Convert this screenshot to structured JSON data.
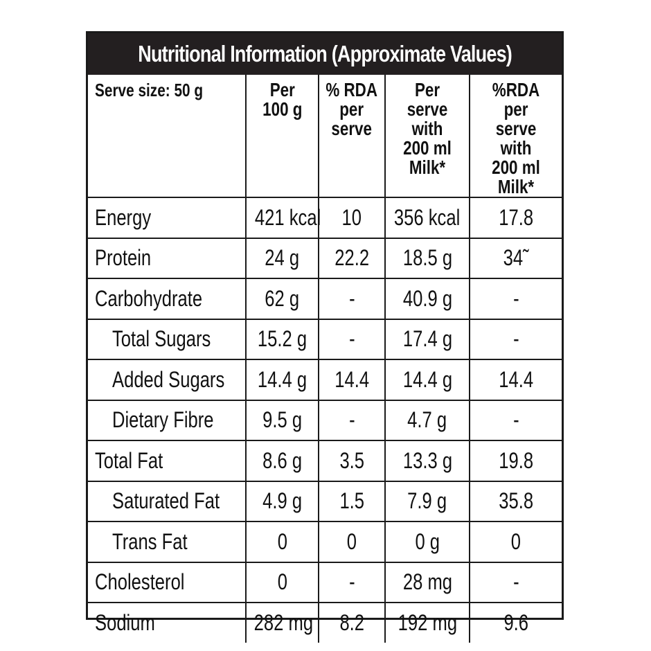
{
  "title": "Nutritional Information (Approximate Values)",
  "headers": {
    "serve_size": "Serve size: 50 g",
    "per_100g": "Per\n100 g",
    "rda_per_serve": "% RDA\nper\nserve",
    "per_serve_milk": "Per serve\nwith\n200 ml\nMilk*",
    "rda_per_serve_milk": "%RDA per\nserve with\n200 ml\nMilk*"
  },
  "rows": [
    {
      "nutrient": "Energy",
      "indent": false,
      "per100g": "421 kcal",
      "rda": "10",
      "perServeMilk": "356 kcal",
      "rdaMilk": "17.8"
    },
    {
      "nutrient": "Protein",
      "indent": false,
      "per100g": "24 g",
      "rda": "22.2",
      "perServeMilk": "18.5 g",
      "rdaMilk": "34˜"
    },
    {
      "nutrient": "Carbohydrate",
      "indent": false,
      "per100g": "62 g",
      "rda": "-",
      "perServeMilk": "40.9 g",
      "rdaMilk": "-"
    },
    {
      "nutrient": "Total Sugars",
      "indent": true,
      "per100g": "15.2 g",
      "rda": "-",
      "perServeMilk": "17.4 g",
      "rdaMilk": "-"
    },
    {
      "nutrient": "Added Sugars",
      "indent": true,
      "per100g": "14.4 g",
      "rda": "14.4",
      "perServeMilk": "14.4 g",
      "rdaMilk": "14.4"
    },
    {
      "nutrient": "Dietary Fibre",
      "indent": true,
      "per100g": "9.5 g",
      "rda": "-",
      "perServeMilk": "4.7 g",
      "rdaMilk": "-"
    },
    {
      "nutrient": "Total Fat",
      "indent": false,
      "per100g": "8.6 g",
      "rda": "3.5",
      "perServeMilk": "13.3 g",
      "rdaMilk": "19.8"
    },
    {
      "nutrient": "Saturated Fat",
      "indent": true,
      "per100g": "4.9 g",
      "rda": "1.5",
      "perServeMilk": "7.9 g",
      "rdaMilk": "35.8"
    },
    {
      "nutrient": "Trans Fat",
      "indent": true,
      "per100g": "0",
      "rda": "0",
      "perServeMilk": "0 g",
      "rdaMilk": "0"
    },
    {
      "nutrient": "Cholesterol",
      "indent": false,
      "per100g": "0",
      "rda": "-",
      "perServeMilk": "28 mg",
      "rdaMilk": "-"
    },
    {
      "nutrient": "Sodium",
      "indent": false,
      "per100g": "282 mg",
      "rda": "8.2",
      "perServeMilk": "192 mg",
      "rdaMilk": "9.6"
    }
  ]
}
